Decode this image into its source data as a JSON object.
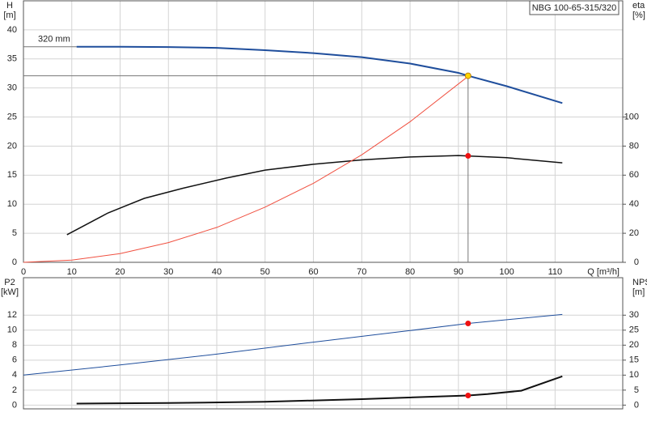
{
  "chart_data": [
    {
      "type": "line",
      "title": "NBG 100-65-315/320",
      "ylabel": [
        "H",
        "[m]"
      ],
      "y2label": [
        "eta",
        "[%]"
      ],
      "xlabel": "Q [m³/h]",
      "annotation": "320 mm",
      "xlim": [
        0,
        124
      ],
      "xticks": [
        0,
        10,
        20,
        30,
        40,
        50,
        60,
        70,
        80,
        90,
        100,
        110
      ],
      "ylim": [
        0,
        45
      ],
      "yticks": [
        0,
        5,
        10,
        15,
        20,
        25,
        30,
        35,
        40
      ],
      "y2lim": [
        0,
        180
      ],
      "y2ticks": [
        0,
        20,
        40,
        60,
        80,
        100
      ],
      "grid": true,
      "series": [
        {
          "color": "#1f4e9c",
          "width": 2,
          "axis": "y",
          "x": [
            11,
            20,
            30,
            40,
            50,
            60,
            70,
            80,
            90,
            92,
            100,
            111.5
          ],
          "values": [
            37.1,
            37.1,
            37.05,
            36.9,
            36.5,
            36.0,
            35.3,
            34.2,
            32.6,
            32.1,
            30.3,
            27.4
          ]
        },
        {
          "color": "#111111",
          "width": 1.5,
          "axis": "y2",
          "x": [
            9,
            17.5,
            25,
            33,
            42,
            50,
            60,
            70,
            80,
            90,
            100,
            111.5
          ],
          "values": [
            19,
            34,
            44,
            51,
            58,
            63.5,
            67.5,
            70.5,
            72.5,
            73.5,
            72,
            68.5
          ]
        },
        {
          "color": "#f05040",
          "width": 1,
          "axis": "y",
          "x": [
            0,
            10,
            20,
            30,
            40,
            50,
            60,
            70,
            80,
            92
          ],
          "values": [
            0,
            0.38,
            1.5,
            3.4,
            6.0,
            9.5,
            13.6,
            18.5,
            24.2,
            32
          ]
        }
      ],
      "markers": [
        {
          "x": 92,
          "y": 32.1,
          "color": "#ffd700",
          "axis": "y"
        },
        {
          "x": 92,
          "y": 73.3,
          "color": "#ee1111",
          "axis": "y2"
        }
      ]
    },
    {
      "type": "line",
      "ylabel": [
        "P2",
        "[kW]"
      ],
      "y2label": [
        "NPSH",
        "[m]"
      ],
      "xlim": [
        0,
        124
      ],
      "ylim": [
        -0.5,
        17
      ],
      "yticks": [
        0,
        2,
        4,
        6,
        8,
        10,
        12
      ],
      "y2lim": [
        -1.25,
        42.5
      ],
      "y2ticks": [
        0,
        5,
        10,
        15,
        20,
        25,
        30
      ],
      "grid": true,
      "series": [
        {
          "color": "#1f4e9c",
          "width": 1,
          "axis": "y",
          "x": [
            0,
            20,
            40,
            60,
            80,
            92,
            111.5
          ],
          "values": [
            4.0,
            5.35,
            6.8,
            8.4,
            9.95,
            10.9,
            12.1
          ]
        },
        {
          "color": "#111111",
          "width": 2,
          "axis": "y2",
          "x": [
            11,
            30,
            50,
            70,
            92,
            96,
            103,
            111.5
          ],
          "values": [
            0.5,
            0.7,
            1.1,
            2.0,
            3.2,
            3.7,
            4.8,
            9.6
          ]
        }
      ],
      "markers": [
        {
          "x": 92,
          "y": 10.9,
          "color": "#ee1111",
          "axis": "y"
        },
        {
          "x": 92,
          "y": 3.2,
          "color": "#ee1111",
          "axis": "y2"
        }
      ]
    }
  ]
}
